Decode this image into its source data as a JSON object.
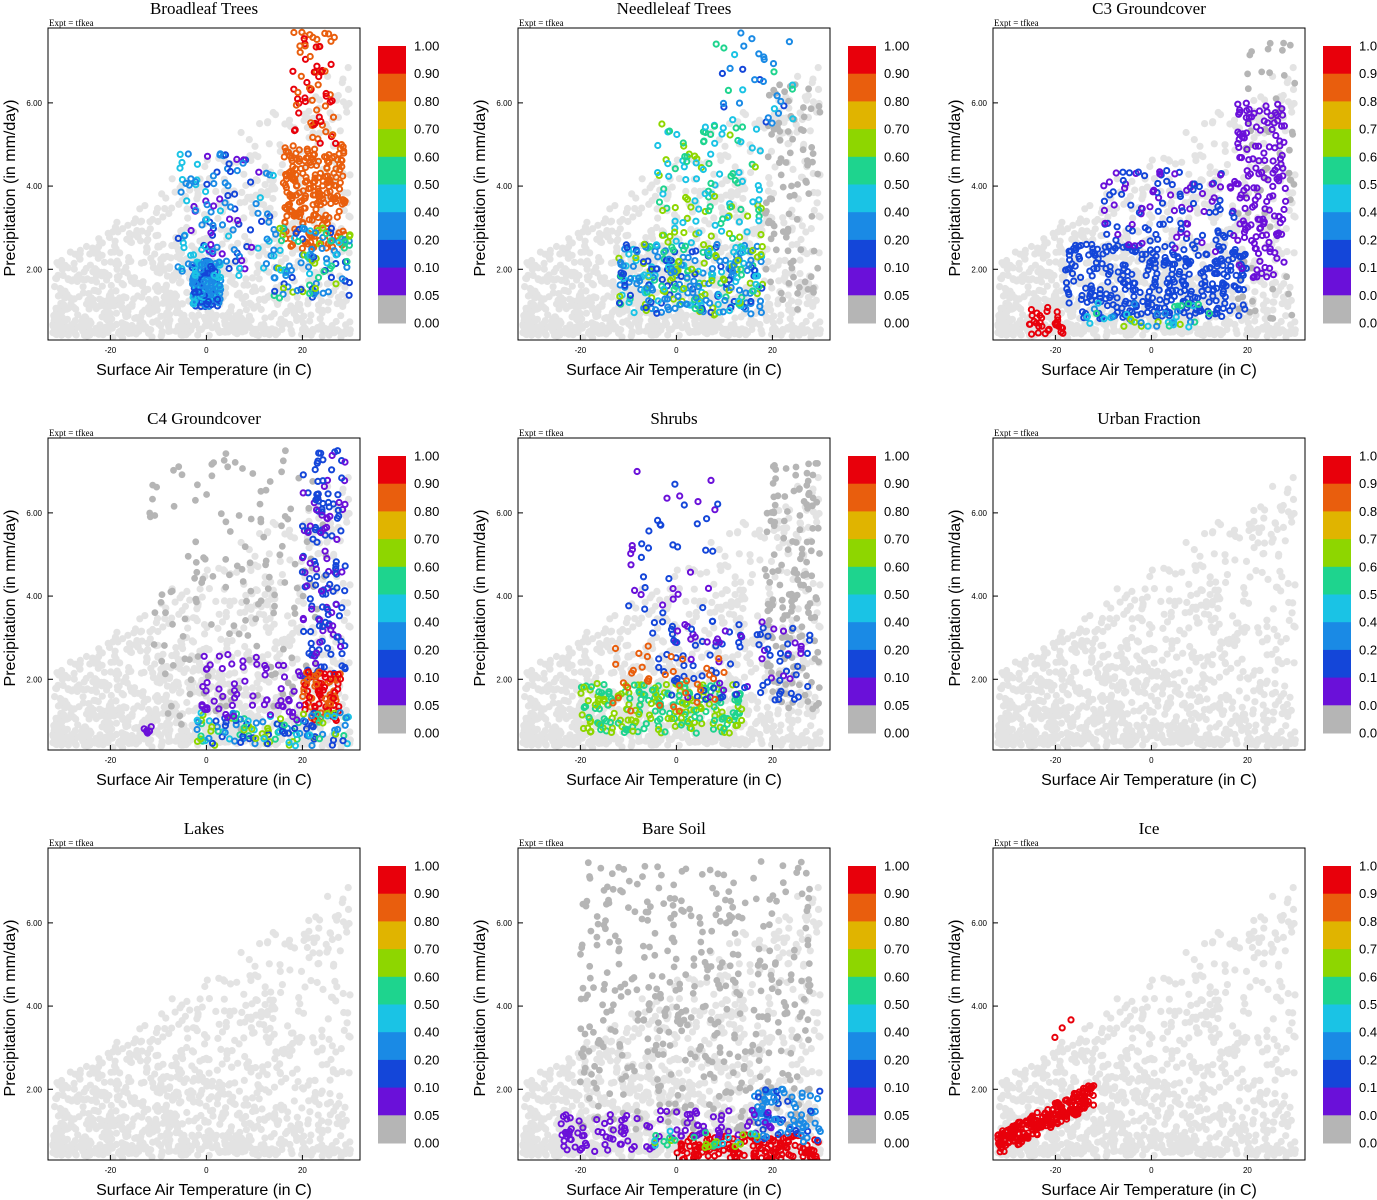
{
  "figure": {
    "expt_label": "Expt = tfkea",
    "xlabel": "Surface Air Temperature (in C)",
    "ylabel": "Precipitation (in mm/day)"
  },
  "colorbar": {
    "levels": [
      "1.00",
      "0.90",
      "0.80",
      "0.70",
      "0.60",
      "0.50",
      "0.40",
      "0.20",
      "0.10",
      "0.05",
      "0.00"
    ],
    "colors": [
      "#e8000b",
      "#e95e0d",
      "#e0b400",
      "#8ed600",
      "#1ed48e",
      "#1ac3e5",
      "#1a8ae5",
      "#1446d9",
      "#6a10d9",
      "#b5b5b5"
    ]
  },
  "background_color": "#e3e3e3",
  "chart_data": [
    {
      "type": "scatter",
      "title": "Broadleaf Trees",
      "xlim": [
        -33,
        32
      ],
      "ylim": [
        0.3,
        7.8
      ],
      "xticks": [
        -20,
        0,
        20
      ],
      "xtick_labels": [
        "-20",
        "0",
        "20"
      ],
      "yticks": [
        2,
        4,
        6
      ],
      "ytick_labels": [
        "2.00",
        "4.00",
        "6.00"
      ],
      "clusters": [
        {
          "n": 180,
          "x": [
            -3,
            3
          ],
          "y": [
            1.1,
            2.2
          ],
          "fmin": 0.1,
          "fmax": 0.5
        },
        {
          "n": 120,
          "x": [
            -6,
            14
          ],
          "y": [
            1.8,
            4.8
          ],
          "fmin": 0.05,
          "fmax": 0.5
        },
        {
          "n": 220,
          "x": [
            16,
            29
          ],
          "y": [
            2.5,
            5.0
          ],
          "fmin": 0.8,
          "fmax": 0.9
        },
        {
          "n": 70,
          "x": [
            18,
            27
          ],
          "y": [
            5.0,
            7.7
          ],
          "fmin": 0.8,
          "fmax": 1.0
        },
        {
          "n": 110,
          "x": [
            14,
            30
          ],
          "y": [
            1.3,
            3.0
          ],
          "fmin": 0.1,
          "fmax": 0.7
        }
      ]
    },
    {
      "type": "scatter",
      "title": "Needleleaf Trees",
      "xlim": [
        -33,
        32
      ],
      "ylim": [
        0.3,
        7.8
      ],
      "xticks": [
        -20,
        0,
        20
      ],
      "xtick_labels": [
        "-20",
        "0",
        "20"
      ],
      "yticks": [
        2,
        4,
        6
      ],
      "ytick_labels": [
        "2.00",
        "4.00",
        "6.00"
      ],
      "gray": {
        "n": 90,
        "x": [
          18,
          30
        ],
        "y": [
          1.0,
          6.5
        ]
      },
      "clusters": [
        {
          "n": 300,
          "x": [
            -12,
            18
          ],
          "y": [
            0.9,
            2.6
          ],
          "fmin": 0.1,
          "fmax": 0.7
        },
        {
          "n": 130,
          "x": [
            -4,
            18
          ],
          "y": [
            2.4,
            5.5
          ],
          "fmin": 0.4,
          "fmax": 0.7
        },
        {
          "n": 35,
          "x": [
            8,
            25
          ],
          "y": [
            5.5,
            7.7
          ],
          "fmin": 0.1,
          "fmax": 0.6
        }
      ]
    },
    {
      "type": "scatter",
      "title": "C3 Groundcover",
      "xlim": [
        -33,
        32
      ],
      "ylim": [
        0.3,
        7.8
      ],
      "xticks": [
        -20,
        0,
        20
      ],
      "xtick_labels": [
        "-20",
        "0",
        "20"
      ],
      "yticks": [
        2,
        4,
        6
      ],
      "ytick_labels": [
        "2.00",
        "4.00",
        "6.00"
      ],
      "gray": {
        "n": 60,
        "x": [
          18,
          30
        ],
        "y": [
          0.8,
          7.5
        ]
      },
      "clusters": [
        {
          "n": 320,
          "x": [
            -18,
            20
          ],
          "y": [
            0.8,
            2.6
          ],
          "fmin": 0.1,
          "fmax": 0.2
        },
        {
          "n": 150,
          "x": [
            18,
            28
          ],
          "y": [
            1.8,
            6.0
          ],
          "fmin": 0.05,
          "fmax": 0.05
        },
        {
          "n": 120,
          "x": [
            -10,
            18
          ],
          "y": [
            2.4,
            4.4
          ],
          "fmin": 0.05,
          "fmax": 0.2
        },
        {
          "n": 30,
          "x": [
            -26,
            -18
          ],
          "y": [
            0.4,
            1.1
          ],
          "fmin": 0.9,
          "fmax": 1.0
        },
        {
          "n": 40,
          "x": [
            -14,
            14
          ],
          "y": [
            0.6,
            1.2
          ],
          "fmin": 0.2,
          "fmax": 0.7
        }
      ]
    },
    {
      "type": "scatter",
      "title": "C4 Groundcover",
      "xlim": [
        -33,
        32
      ],
      "ylim": [
        0.3,
        7.8
      ],
      "xticks": [
        -20,
        0,
        20
      ],
      "xtick_labels": [
        "-20",
        "0",
        "20"
      ],
      "yticks": [
        2,
        4,
        6
      ],
      "ytick_labels": [
        "2.00",
        "4.00",
        "6.00"
      ],
      "gray": {
        "n": 160,
        "x": [
          -12,
          25
        ],
        "y": [
          0.8,
          7.5
        ]
      },
      "clusters": [
        {
          "n": 160,
          "x": [
            20,
            29
          ],
          "y": [
            2.0,
            7.5
          ],
          "fmin": 0.05,
          "fmax": 0.2
        },
        {
          "n": 90,
          "x": [
            20,
            28
          ],
          "y": [
            1.0,
            2.2
          ],
          "fmin": 0.8,
          "fmax": 1.0
        },
        {
          "n": 130,
          "x": [
            -2,
            30
          ],
          "y": [
            0.4,
            1.2
          ],
          "fmin": 0.1,
          "fmax": 0.7
        },
        {
          "n": 60,
          "x": [
            -1,
            20
          ],
          "y": [
            1.0,
            2.6
          ],
          "fmin": 0.05,
          "fmax": 0.05
        },
        {
          "n": 6,
          "x": [
            -13,
            -11
          ],
          "y": [
            0.7,
            0.9
          ],
          "fmin": 0.05,
          "fmax": 0.05
        }
      ]
    },
    {
      "type": "scatter",
      "title": "Shrubs",
      "xlim": [
        -33,
        32
      ],
      "ylim": [
        0.3,
        7.8
      ],
      "xticks": [
        -20,
        0,
        20
      ],
      "xtick_labels": [
        "-20",
        "0",
        "20"
      ],
      "yticks": [
        2,
        4,
        6
      ],
      "ytick_labels": [
        "2.00",
        "4.00",
        "6.00"
      ],
      "gray": {
        "n": 150,
        "x": [
          18,
          30
        ],
        "y": [
          1.2,
          7.3
        ]
      },
      "clusters": [
        {
          "n": 230,
          "x": [
            -20,
            14
          ],
          "y": [
            0.7,
            1.9
          ],
          "fmin": 0.5,
          "fmax": 0.7
        },
        {
          "n": 110,
          "x": [
            -4,
            28
          ],
          "y": [
            1.5,
            3.4
          ],
          "fmin": 0.05,
          "fmax": 0.2
        },
        {
          "n": 45,
          "x": [
            -10,
            12
          ],
          "y": [
            3.0,
            7.0
          ],
          "fmin": 0.05,
          "fmax": 0.2
        },
        {
          "n": 35,
          "x": [
            -14,
            10
          ],
          "y": [
            1.2,
            2.8
          ],
          "fmin": 0.8,
          "fmax": 0.9
        }
      ]
    },
    {
      "type": "scatter",
      "title": "Urban Fraction",
      "xlim": [
        -33,
        32
      ],
      "ylim": [
        0.3,
        7.8
      ],
      "xticks": [
        -20,
        0,
        20
      ],
      "xtick_labels": [
        "-20",
        "0",
        "20"
      ],
      "yticks": [
        2,
        4,
        6
      ],
      "ytick_labels": [
        "2.00",
        "4.00",
        "6.00"
      ],
      "clusters": []
    },
    {
      "type": "scatter",
      "title": "Lakes",
      "xlim": [
        -33,
        32
      ],
      "ylim": [
        0.3,
        7.8
      ],
      "xticks": [
        -20,
        0,
        20
      ],
      "xtick_labels": [
        "-20",
        "0",
        "20"
      ],
      "yticks": [
        2,
        4,
        6
      ],
      "ytick_labels": [
        "2.00",
        "4.00",
        "6.00"
      ],
      "clusters": []
    },
    {
      "type": "scatter",
      "title": "Bare Soil",
      "xlim": [
        -33,
        32
      ],
      "ylim": [
        0.3,
        7.8
      ],
      "xticks": [
        -20,
        0,
        20
      ],
      "xtick_labels": [
        "-20",
        "0",
        "20"
      ],
      "yticks": [
        2,
        4,
        6
      ],
      "ytick_labels": [
        "2.00",
        "4.00",
        "6.00"
      ],
      "gray": {
        "n": 420,
        "x": [
          -20,
          28
        ],
        "y": [
          1.0,
          7.5
        ]
      },
      "clusters": [
        {
          "n": 150,
          "x": [
            0,
            30
          ],
          "y": [
            0.3,
            0.9
          ],
          "fmin": 0.9,
          "fmax": 1.0
        },
        {
          "n": 90,
          "x": [
            16,
            30
          ],
          "y": [
            0.7,
            2.0
          ],
          "fmin": 0.1,
          "fmax": 0.4
        },
        {
          "n": 60,
          "x": [
            -24,
            -4
          ],
          "y": [
            0.5,
            1.4
          ],
          "fmin": 0.05,
          "fmax": 0.1
        },
        {
          "n": 45,
          "x": [
            -4,
            20
          ],
          "y": [
            0.8,
            1.5
          ],
          "fmin": 0.05,
          "fmax": 0.1
        },
        {
          "n": 30,
          "x": [
            -6,
            18
          ],
          "y": [
            0.6,
            1.0
          ],
          "fmin": 0.4,
          "fmax": 0.7
        }
      ]
    },
    {
      "type": "scatter",
      "title": "Ice",
      "xlim": [
        -33,
        32
      ],
      "ylim": [
        0.3,
        7.8
      ],
      "xticks": [
        -20,
        0,
        20
      ],
      "xtick_labels": [
        "-20",
        "0",
        "20"
      ],
      "yticks": [
        2,
        4,
        6
      ],
      "ytick_labels": [
        "2.00",
        "4.00",
        "6.00"
      ],
      "clusters": [
        {
          "n": 220,
          "x": [
            -32,
            -12
          ],
          "y": [
            0.4,
            2.0
          ],
          "fmin": 1.0,
          "fmax": 1.0,
          "band": true
        },
        {
          "n": 3,
          "x": [
            -22,
            -16
          ],
          "y": [
            3.2,
            3.7
          ],
          "fmin": 1.0,
          "fmax": 1.0
        }
      ]
    }
  ]
}
